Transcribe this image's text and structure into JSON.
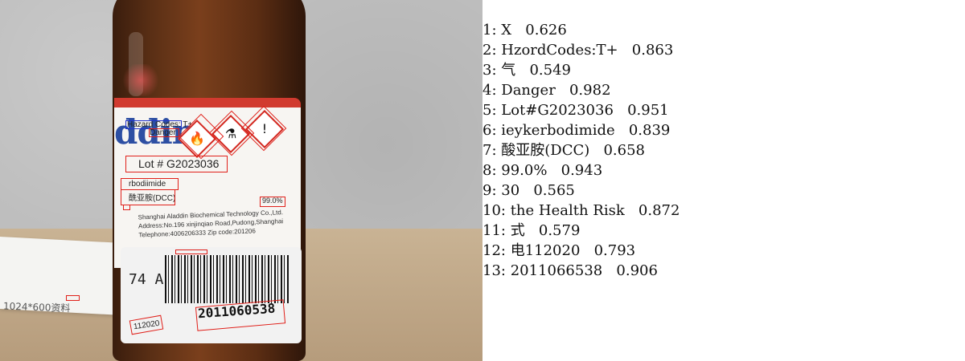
{
  "photo": {
    "brand_text": "ddin",
    "hazard_codes_text": "Hazard Codes: T+",
    "danger_text": "Danger",
    "lot_text": "Lot # G2023036",
    "chemical_en": "rbodiimide",
    "chemical_cn": "酰亚胺(DCC)",
    "purity_text": "99.0%",
    "company_line": "Shanghai Aladdin Biochemical Technology Co.,Ltd.",
    "address_line": "Address:No.196 xinjinqiao Road,Pudong,Shanghai",
    "telephone_line": "Telephone:4006206333  Zip code:201206",
    "side_code": "74 A",
    "barcode_number": "2011060538",
    "date_code": "112020",
    "paper_text": "1024*600资料",
    "hazard_icons": [
      "flame-icon",
      "corrosive-icon",
      "exclamation-icon"
    ]
  },
  "results": [
    {
      "index": "1:",
      "text": "X",
      "score": "0.626"
    },
    {
      "index": "2:",
      "text": "HzordCodes:T+",
      "score": "0.863"
    },
    {
      "index": "3:",
      "text": "气",
      "score": "0.549"
    },
    {
      "index": "4:",
      "text": "Danger",
      "score": "0.982"
    },
    {
      "index": "5:",
      "text": "Lot#G2023036",
      "score": "0.951"
    },
    {
      "index": "6:",
      "text": "ieykerbodimide",
      "score": "0.839"
    },
    {
      "index": "7:",
      "text": "酸亚胺(DCC)",
      "score": "0.658"
    },
    {
      "index": "8:",
      "text": "99.0%",
      "score": "0.943"
    },
    {
      "index": "9:",
      "text": "30",
      "score": "0.565"
    },
    {
      "index": "10:",
      "text": "the Health Risk",
      "score": "0.872"
    },
    {
      "index": "11:",
      "text": "式",
      "score": "0.579"
    },
    {
      "index": "12:",
      "text": "电112020",
      "score": "0.793"
    },
    {
      "index": "13:",
      "text": "2011066538",
      "score": "0.906"
    }
  ],
  "colors": {
    "box_red": "#e0201a",
    "box_blue": "#2233cc",
    "label_red": "#d13a2f",
    "brand_blue": "#2d4fa3"
  }
}
